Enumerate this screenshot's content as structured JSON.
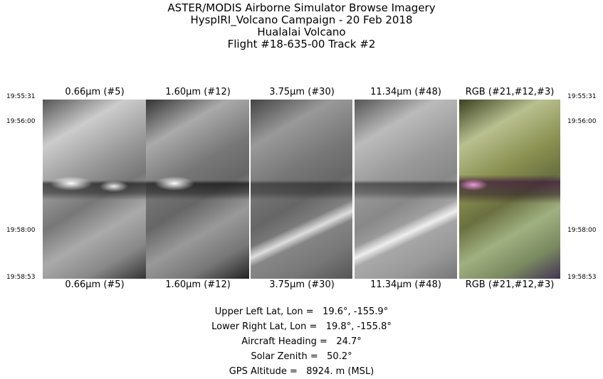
{
  "title": {
    "line1": "ASTER/MODIS Airborne Simulator Browse Imagery",
    "line2": "HyspIRI_Volcano Campaign - 20 Feb 2018",
    "line3": "Hualalai Volcano",
    "line4": "Flight #18-635-00 Track #2"
  },
  "times": [
    "19:55:31",
    "19:56:00",
    "19:58:00",
    "19:58:53"
  ],
  "panels": [
    {
      "label": "0.66μm (#5)"
    },
    {
      "label": "1.60μm (#12)"
    },
    {
      "label": "3.75μm (#30)"
    },
    {
      "label": "11.34μm (#48)"
    },
    {
      "label": "RGB (#21,#12,#3)"
    }
  ],
  "info": {
    "upper_left": "Upper Left Lat, Lon =   19.6°, -155.9°",
    "lower_right": "Lower Right Lat, Lon =   19.8°, -155.8°",
    "heading": "Aircraft Heading =   24.7°",
    "solar_zenith": "Solar Zenith =   50.2°",
    "altitude": "GPS Altitude =   8924. m (MSL)"
  }
}
